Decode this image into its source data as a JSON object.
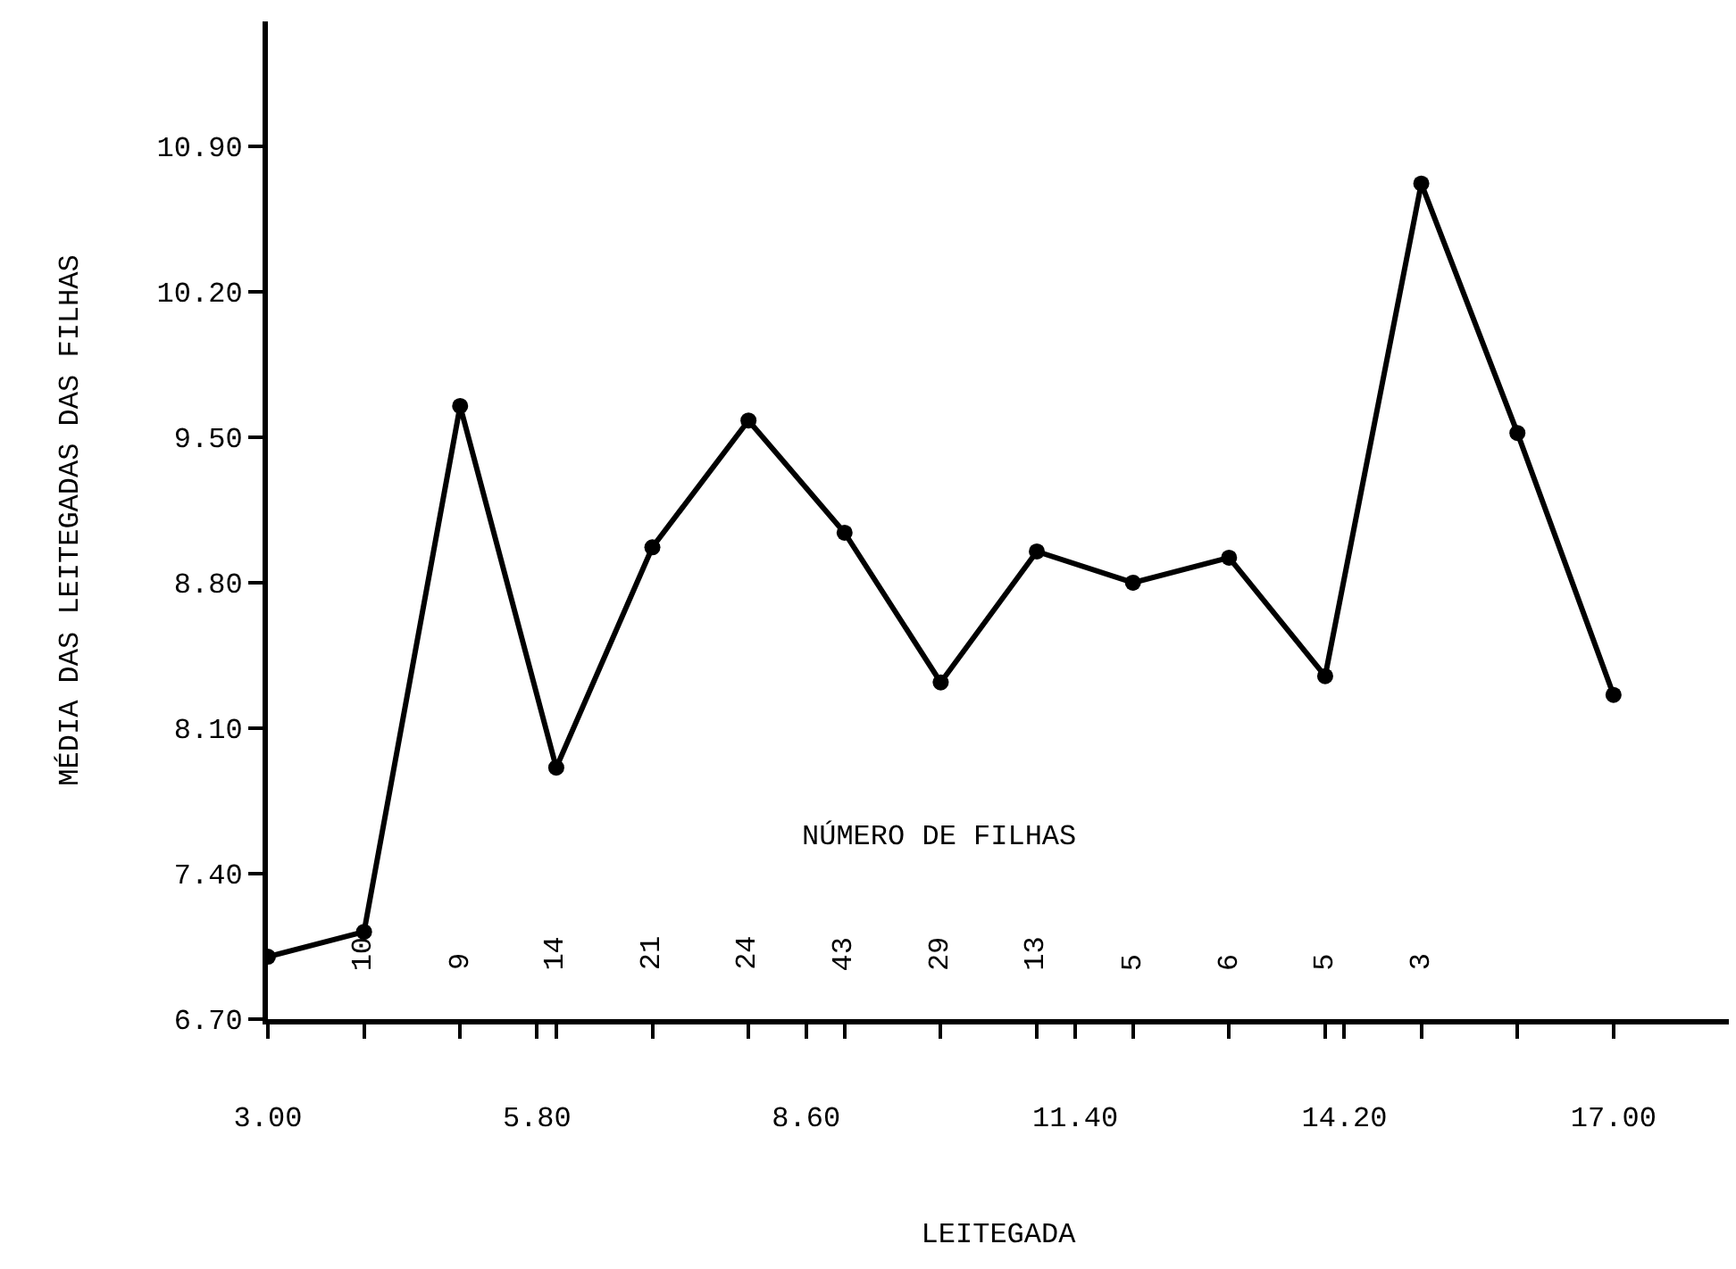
{
  "chart_data": {
    "type": "line",
    "xlabel": "LEITEGADA",
    "ylabel": "MÉDIA DAS LEITEGADAS DAS FILHAS",
    "x": [
      3,
      4,
      5,
      6,
      7,
      8,
      9,
      10,
      11,
      12,
      13,
      14,
      15,
      16,
      17
    ],
    "series": [
      {
        "color": "#000000",
        "values": [
          7.0,
          7.12,
          9.65,
          7.91,
          8.97,
          9.58,
          9.04,
          8.32,
          8.95,
          8.8,
          8.92,
          8.35,
          10.72,
          9.52,
          8.26
        ]
      }
    ],
    "xlim": [
      3,
      18.2
    ],
    "xticks": [
      {
        "value": 3,
        "label": "3.00"
      },
      {
        "value": 4,
        "label": null
      },
      {
        "value": 5,
        "label": null
      },
      {
        "value": 5.8,
        "label": "5.80"
      },
      {
        "value": 6,
        "label": null
      },
      {
        "value": 7,
        "label": null
      },
      {
        "value": 8,
        "label": null
      },
      {
        "value": 8.6,
        "label": "8.60"
      },
      {
        "value": 9,
        "label": null
      },
      {
        "value": 10,
        "label": null
      },
      {
        "value": 11,
        "label": null
      },
      {
        "value": 11.4,
        "label": "11.40"
      },
      {
        "value": 12,
        "label": null
      },
      {
        "value": 13,
        "label": null
      },
      {
        "value": 14,
        "label": null
      },
      {
        "value": 14.2,
        "label": "14.20"
      },
      {
        "value": 15,
        "label": null
      },
      {
        "value": 16,
        "label": null
      },
      {
        "value": 17,
        "label": "17.00"
      }
    ],
    "ylim": [
      6.7,
      11.5
    ],
    "yticks": [
      {
        "value": 6.7,
        "label": "6.70"
      },
      {
        "value": 7.4,
        "label": "7.40"
      },
      {
        "value": 8.1,
        "label": "8.10"
      },
      {
        "value": 8.8,
        "label": "8.80"
      },
      {
        "value": 9.5,
        "label": "9.50"
      },
      {
        "value": 10.2,
        "label": "10.20"
      },
      {
        "value": 10.9,
        "label": "10.90"
      }
    ],
    "annotations": [
      "NÚMERO DE FILHAS",
      "10",
      "9",
      "14",
      "21",
      "24",
      "43",
      "29",
      "13",
      "5",
      "6",
      "5",
      "3"
    ],
    "marker": "circle",
    "line_style": "solid"
  }
}
